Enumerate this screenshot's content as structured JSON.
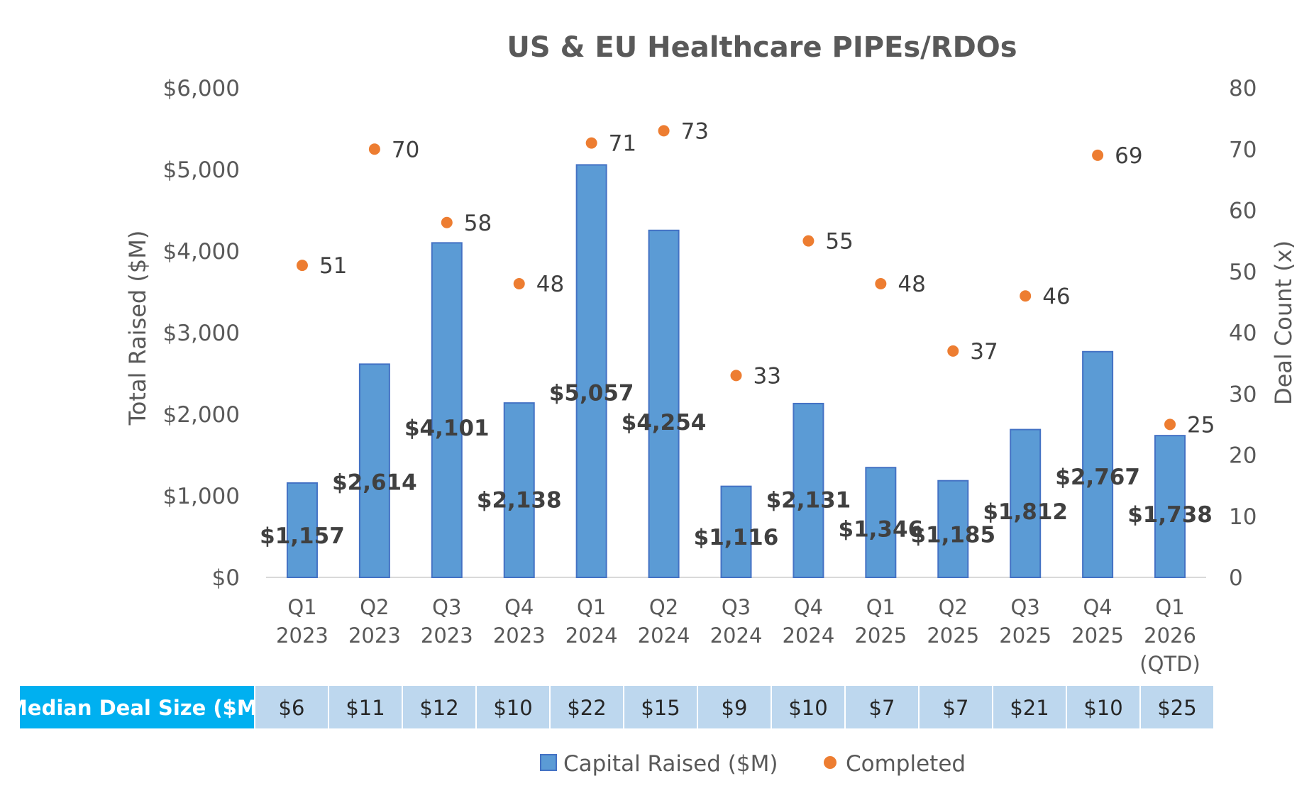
{
  "colors": {
    "bar": "#5b9bd5",
    "bar_edge": "#4472c4",
    "dot": "#ed7d31",
    "table_header_bg": "#00b0f0",
    "table_cell_bg": "#bdd7ee"
  },
  "chart_data": {
    "type": "bar",
    "title": "US & EU Healthcare PIPEs/RDOs",
    "categories": [
      [
        "Q1",
        "2023"
      ],
      [
        "Q2",
        "2023"
      ],
      [
        "Q3",
        "2023"
      ],
      [
        "Q4",
        "2023"
      ],
      [
        "Q1",
        "2024"
      ],
      [
        "Q2",
        "2024"
      ],
      [
        "Q3",
        "2024"
      ],
      [
        "Q4",
        "2024"
      ],
      [
        "Q1",
        "2025"
      ],
      [
        "Q2",
        "2025"
      ],
      [
        "Q3",
        "2025"
      ],
      [
        "Q4",
        "2025"
      ],
      [
        "Q1",
        "2026",
        "(QTD)"
      ]
    ],
    "series": [
      {
        "name": "Capital Raised ($M)",
        "type": "bar",
        "axis": "left",
        "values": [
          1157,
          2614,
          4101,
          2138,
          5057,
          4254,
          1116,
          2131,
          1346,
          1185,
          1812,
          2767,
          1738
        ],
        "labels": [
          "$1,157",
          "$2,614",
          "$4,101",
          "$2,138",
          "$5,057",
          "$4,254",
          "$1,116",
          "$2,131",
          "$1,346",
          "$1,185",
          "$1,812",
          "$2,767",
          "$1,738"
        ]
      },
      {
        "name": "Completed",
        "type": "scatter",
        "axis": "right",
        "values": [
          51,
          70,
          58,
          48,
          71,
          73,
          33,
          55,
          48,
          37,
          46,
          69,
          25
        ],
        "labels": [
          "51",
          "70",
          "58",
          "48",
          "71",
          "73",
          "33",
          "55",
          "48",
          "37",
          "46",
          "69",
          "25"
        ]
      }
    ],
    "ylabel": "Total Raised ($M)",
    "ylim": [
      0,
      6000
    ],
    "yticks": [
      "$0",
      "$1,000",
      "$2,000",
      "$3,000",
      "$4,000",
      "$5,000",
      "$6,000"
    ],
    "y2label": "Deal Count (x)",
    "y2lim": [
      0,
      80
    ],
    "y2ticks": [
      "0",
      "10",
      "20",
      "30",
      "40",
      "50",
      "60",
      "70",
      "80"
    ],
    "legend": [
      "Capital Raised ($M)",
      "Completed"
    ],
    "legend_position": "bottom",
    "table": {
      "header": "Median Deal Size ($M)",
      "values": [
        "$6",
        "$11",
        "$12",
        "$10",
        "$22",
        "$15",
        "$9",
        "$10",
        "$7",
        "$7",
        "$21",
        "$10",
        "$25"
      ]
    }
  }
}
